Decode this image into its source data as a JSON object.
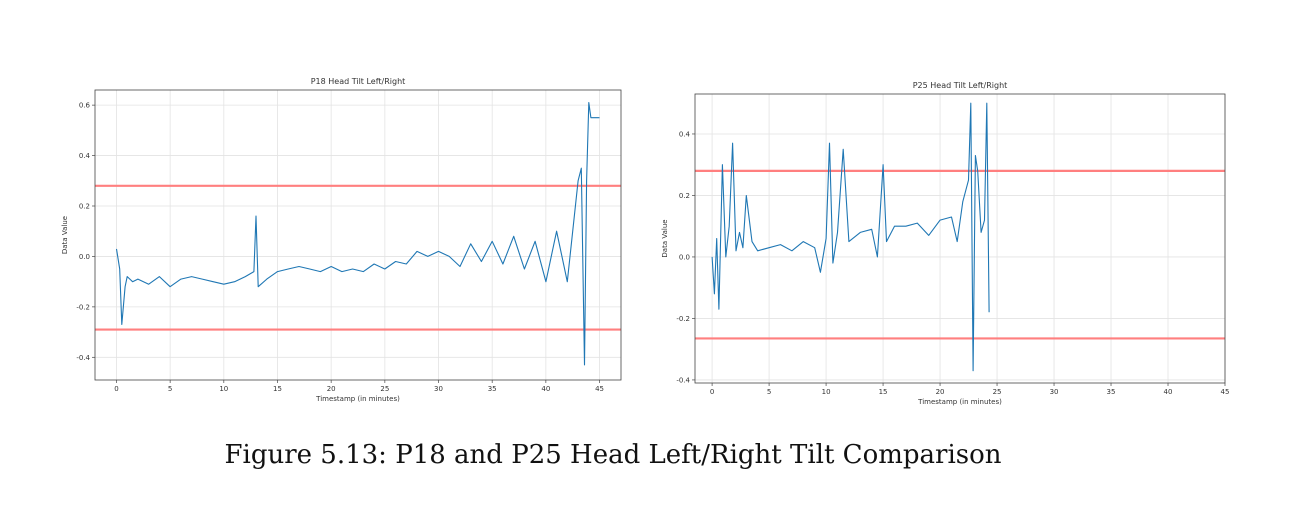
{
  "figure": {
    "caption": "Figure 5.13: P18 and P25 Head Left/Right Tilt Comparison"
  },
  "chart_data": [
    {
      "type": "line",
      "title": "P18 Head Tilt Left/Right",
      "xlabel": "Timestamp (in minutes)",
      "ylabel": "Data Value",
      "xlim": [
        -2,
        47
      ],
      "ylim": [
        -0.49,
        0.66
      ],
      "xticks": [
        0,
        5,
        10,
        15,
        20,
        25,
        30,
        35,
        40,
        45
      ],
      "yticks": [
        -0.4,
        -0.2,
        0.0,
        0.2,
        0.4,
        0.6
      ],
      "grid": true,
      "line_color": "#1f77b4",
      "threshold_color": "#ff7f7f",
      "thresholds": [
        0.28,
        -0.29
      ],
      "series": [
        {
          "x": [
            0,
            0.3,
            0.5,
            0.8,
            1,
            1.5,
            2,
            3,
            4,
            5,
            6,
            7,
            8,
            9,
            10,
            11,
            12,
            12.8,
            13,
            13.2,
            14,
            15,
            16,
            17,
            18,
            19,
            20,
            21,
            22,
            23,
            24,
            25,
            26,
            27,
            28,
            29,
            30,
            31,
            32,
            33,
            34,
            35,
            36,
            37,
            38,
            39,
            40,
            41,
            42,
            43,
            43.3,
            43.6,
            43.8,
            44,
            44.2,
            45
          ],
          "values": [
            0.03,
            -0.05,
            -0.27,
            -0.12,
            -0.08,
            -0.1,
            -0.09,
            -0.11,
            -0.08,
            -0.12,
            -0.09,
            -0.08,
            -0.09,
            -0.1,
            -0.11,
            -0.1,
            -0.08,
            -0.06,
            0.16,
            -0.12,
            -0.09,
            -0.06,
            -0.05,
            -0.04,
            -0.05,
            -0.06,
            -0.04,
            -0.06,
            -0.05,
            -0.06,
            -0.03,
            -0.05,
            -0.02,
            -0.03,
            0.02,
            0.0,
            0.02,
            0.0,
            -0.04,
            0.05,
            -0.02,
            0.06,
            -0.03,
            0.08,
            -0.05,
            0.06,
            -0.1,
            0.1,
            -0.1,
            0.3,
            0.35,
            -0.43,
            0.3,
            0.61,
            0.55,
            0.55
          ]
        }
      ]
    },
    {
      "type": "line",
      "title": "P25 Head Tilt Left/Right",
      "xlabel": "Timestamp (in minutes)",
      "ylabel": "Data Value",
      "xlim": [
        -1.5,
        45
      ],
      "ylim": [
        -0.41,
        0.53
      ],
      "xticks": [
        0,
        5,
        10,
        15,
        20,
        25,
        30,
        35,
        40,
        45
      ],
      "yticks": [
        -0.4,
        -0.2,
        0.0,
        0.2,
        0.4
      ],
      "grid": true,
      "line_color": "#1f77b4",
      "threshold_color": "#ff7f7f",
      "thresholds": [
        0.28,
        -0.265
      ],
      "series": [
        {
          "x": [
            0,
            0.2,
            0.4,
            0.6,
            0.9,
            1.2,
            1.5,
            1.8,
            2.1,
            2.4,
            2.7,
            3,
            3.5,
            4,
            5,
            6,
            7,
            8,
            9,
            9.5,
            10,
            10.3,
            10.6,
            11,
            11.5,
            12,
            13,
            14,
            14.5,
            15,
            15.3,
            16,
            17,
            18,
            19,
            20,
            21,
            21.5,
            22,
            22.5,
            22.7,
            22.9,
            23.1,
            23.3,
            23.6,
            23.9,
            24.1,
            24.3
          ],
          "values": [
            0.0,
            -0.12,
            0.06,
            -0.17,
            0.3,
            0.0,
            0.1,
            0.37,
            0.02,
            0.08,
            0.03,
            0.2,
            0.05,
            0.02,
            0.03,
            0.04,
            0.02,
            0.05,
            0.03,
            -0.05,
            0.06,
            0.37,
            -0.02,
            0.08,
            0.35,
            0.05,
            0.08,
            0.09,
            0.0,
            0.3,
            0.05,
            0.1,
            0.1,
            0.11,
            0.07,
            0.12,
            0.13,
            0.05,
            0.18,
            0.25,
            0.5,
            -0.37,
            0.33,
            0.28,
            0.08,
            0.12,
            0.5,
            -0.18
          ]
        }
      ]
    }
  ]
}
